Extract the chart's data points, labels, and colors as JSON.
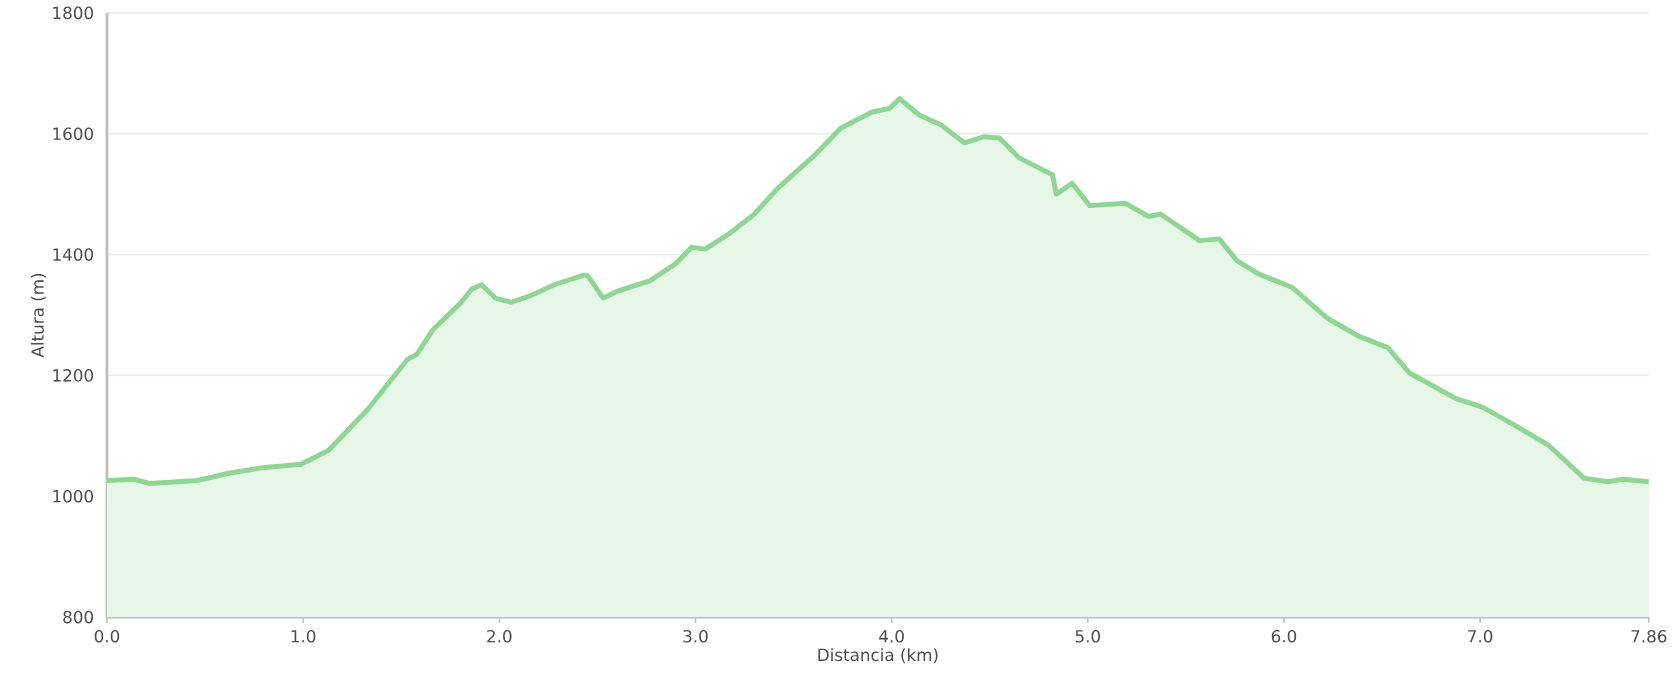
{
  "chart_data": {
    "type": "area",
    "xlabel": "Distancia   (km)",
    "ylabel": "Altura (m)",
    "x": [
      0.0,
      0.14,
      0.22,
      0.46,
      0.62,
      0.79,
      0.99,
      1.13,
      1.33,
      1.53,
      1.58,
      1.66,
      1.8,
      1.86,
      1.91,
      1.98,
      2.06,
      2.16,
      2.28,
      2.43,
      2.45,
      2.53,
      2.6,
      2.77,
      2.9,
      2.98,
      3.05,
      3.17,
      3.3,
      3.42,
      3.6,
      3.74,
      3.9,
      3.99,
      4.04,
      4.14,
      4.25,
      4.37,
      4.47,
      4.55,
      4.65,
      4.82,
      4.84,
      4.92,
      5.01,
      5.19,
      5.31,
      5.37,
      5.57,
      5.67,
      5.76,
      5.87,
      6.04,
      6.22,
      6.38,
      6.53,
      6.64,
      6.88,
      7.01,
      7.18,
      7.35,
      7.53,
      7.65,
      7.73,
      7.86
    ],
    "values": [
      1026,
      1028,
      1021,
      1026,
      1038,
      1047,
      1053,
      1076,
      1144,
      1226,
      1235,
      1275,
      1319,
      1343,
      1350,
      1328,
      1321,
      1332,
      1350,
      1366,
      1365,
      1328,
      1339,
      1357,
      1385,
      1412,
      1409,
      1434,
      1467,
      1510,
      1562,
      1609,
      1636,
      1642,
      1658,
      1631,
      1615,
      1585,
      1595,
      1593,
      1560,
      1532,
      1500,
      1518,
      1481,
      1485,
      1463,
      1467,
      1423,
      1426,
      1390,
      1368,
      1346,
      1295,
      1265,
      1246,
      1204,
      1161,
      1148,
      1117,
      1084,
      1030,
      1024,
      1028,
      1024
    ],
    "color": "#8fd694",
    "xlim": [
      0,
      7.86
    ],
    "ylim": [
      800,
      1800
    ],
    "xticks": [
      {
        "value": 0,
        "label": "0.0"
      },
      {
        "value": 1,
        "label": "1.0"
      },
      {
        "value": 2,
        "label": "2.0"
      },
      {
        "value": 3,
        "label": "3.0"
      },
      {
        "value": 4,
        "label": "4.0"
      },
      {
        "value": 5,
        "label": "5.0"
      },
      {
        "value": 6,
        "label": "6.0"
      },
      {
        "value": 7,
        "label": "7.0"
      },
      {
        "value": 7.86,
        "label": "7.86"
      }
    ],
    "yticks": [
      800,
      1000,
      1200,
      1400,
      1600,
      1800
    ],
    "grid": "y"
  }
}
